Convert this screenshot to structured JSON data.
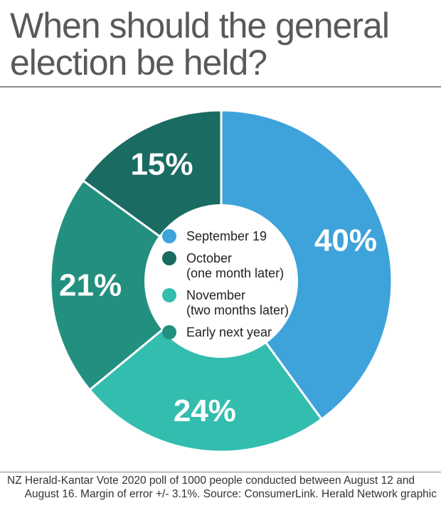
{
  "title_lines": [
    "When should the general",
    "election be held?"
  ],
  "chart_data": {
    "type": "pie",
    "subtype": "donut",
    "title": "When should the general election be held?",
    "categories": [
      "September 19",
      "November (two months later)",
      "Early next year",
      "October (one month later)"
    ],
    "values": [
      40,
      24,
      21,
      15
    ],
    "labels": [
      "40%",
      "24%",
      "21%",
      "15%"
    ],
    "colors": [
      "#3ea3da",
      "#32bdae",
      "#23907f",
      "#1a6b62"
    ],
    "legend": [
      {
        "color": "#3ea3da",
        "lines": [
          "September 19"
        ]
      },
      {
        "color": "#1a6b62",
        "lines": [
          "October",
          "(one month later)"
        ]
      },
      {
        "color": "#32bdae",
        "lines": [
          "November",
          "(two months later)"
        ]
      },
      {
        "color": "#23907f",
        "lines": [
          "Early next year"
        ]
      }
    ],
    "legend_position": "center"
  },
  "footer_lines": [
    "NZ Herald-Kantar Vote 2020 poll of 1000 people conducted between August 12 and",
    "August 16. Margin of error +/- 3.1%. Source: ConsumerLink.  Herald Network graphic"
  ]
}
